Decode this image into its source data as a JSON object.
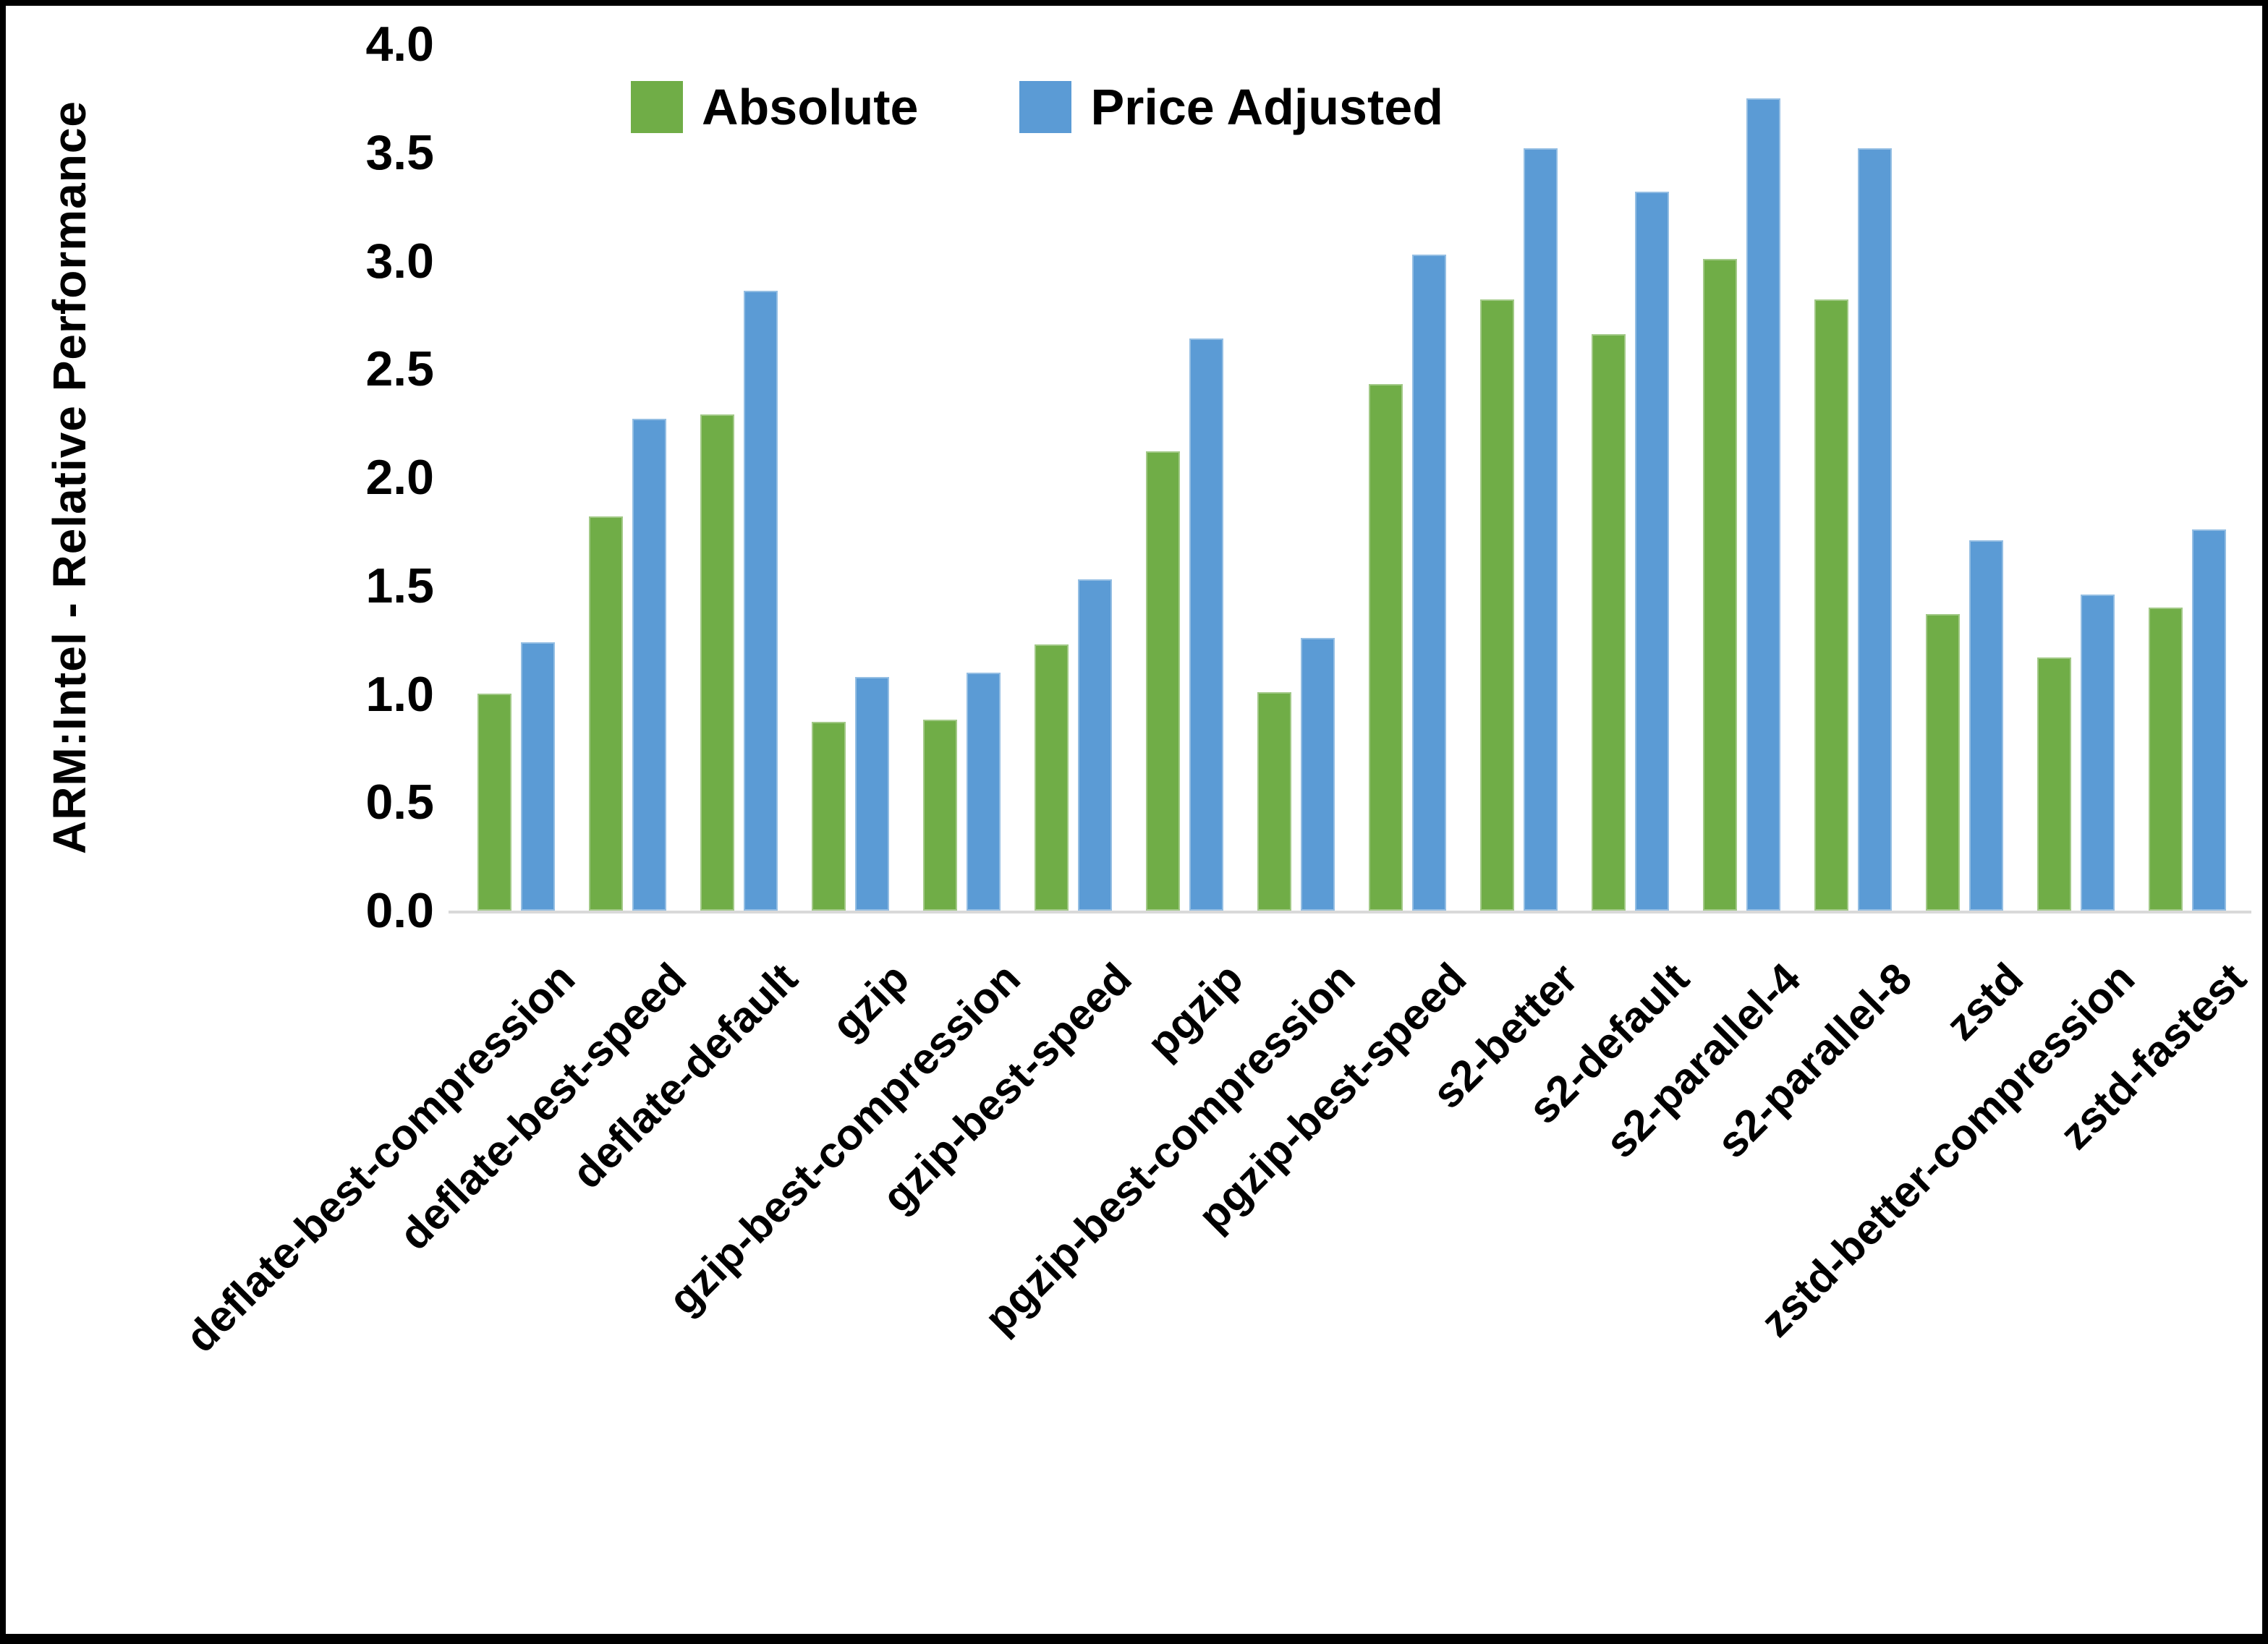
{
  "chart_data": {
    "type": "bar",
    "title": "",
    "xlabel": "",
    "ylabel": "ARM:Intel - Relative Performance",
    "ylim": [
      0.0,
      4.0
    ],
    "ytick_step": 0.5,
    "ytick_labels": [
      "0.0",
      "0.5",
      "1.0",
      "1.5",
      "2.0",
      "2.5",
      "3.0",
      "3.5",
      "4.0"
    ],
    "grid": false,
    "legend_position": "top-center",
    "background": "#FFFFFF",
    "text_color": "#000000",
    "axis_line_color": "#D9D9D9",
    "categories": [
      "deflate-best-compression",
      "deflate-best-speed",
      "deflate-default",
      "gzip",
      "gzip-best-compression",
      "gzip-best-speed",
      "pgzip",
      "pgzip-best-compression",
      "pgzip-best-speed",
      "s2-better",
      "s2-default",
      "s2-parallel-4",
      "s2-parallel-8",
      "zstd",
      "zstd-better-compression",
      "zstd-fastest"
    ],
    "series": [
      {
        "name": "Absolute",
        "color": "#70AD47",
        "values": [
          1.0,
          1.82,
          2.29,
          0.87,
          0.88,
          1.23,
          2.12,
          1.01,
          2.43,
          2.82,
          2.66,
          3.01,
          2.82,
          1.37,
          1.17,
          1.4
        ]
      },
      {
        "name": "Price Adjusted",
        "color": "#5B9BD5",
        "values": [
          1.24,
          2.27,
          2.86,
          1.08,
          1.1,
          1.53,
          2.64,
          1.26,
          3.03,
          3.52,
          3.32,
          3.75,
          3.52,
          1.71,
          1.46,
          1.76
        ]
      }
    ]
  }
}
